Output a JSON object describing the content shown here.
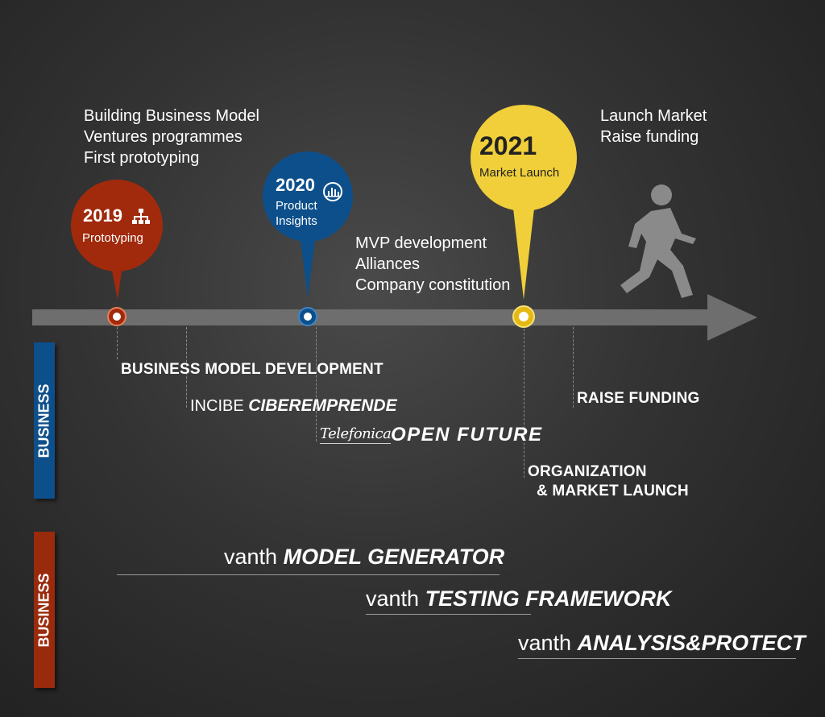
{
  "milestones": [
    {
      "year": "2019",
      "label": "Prototyping",
      "color": "#a12a0c",
      "icon": "org-chart-icon",
      "notes": [
        "Building Business Model",
        "Ventures programmes",
        "First prototyping"
      ]
    },
    {
      "year": "2020",
      "label_lines": [
        "Product",
        "Insights"
      ],
      "color": "#0d4f8b",
      "icon": "bar-chart-icon",
      "notes": [
        "MVP development",
        "Alliances",
        "Company constitution"
      ]
    },
    {
      "year": "2021",
      "label": "Market Launch",
      "color": "#f0cf3a",
      "icon": "walking-person-icon",
      "notes": [
        "Launch Market",
        "Raise funding"
      ]
    }
  ],
  "business_items": {
    "business_model_development": "BUSINESS MODEL DEVELOPMENT",
    "incibe": "INCIBE",
    "ciberemprende": "CIBEREMPRENDE",
    "telefonica": "Telefonica",
    "open_future": "OPEN FUTURE",
    "raise_funding": "RAISE FUNDING",
    "organization": "ORGANIZATION",
    "market_launch": "& MARKET LAUNCH"
  },
  "side_labels": [
    {
      "text": "BUSINESS",
      "color": "#0d4f8b"
    },
    {
      "text": "BUSINESS",
      "color": "#9a2a0c"
    }
  ],
  "products": [
    {
      "prefix": "vanth",
      "name": "MODEL GENERATOR"
    },
    {
      "prefix": "vanth",
      "name": "TESTING FRAMEWORK"
    },
    {
      "prefix": "vanth",
      "name": "ANALYSIS&PROTECT"
    }
  ],
  "colors": {
    "timeline": "#6e6e6e",
    "red": "#a12a0c",
    "blue": "#0d4f8b",
    "yellow": "#f0cf3a"
  }
}
